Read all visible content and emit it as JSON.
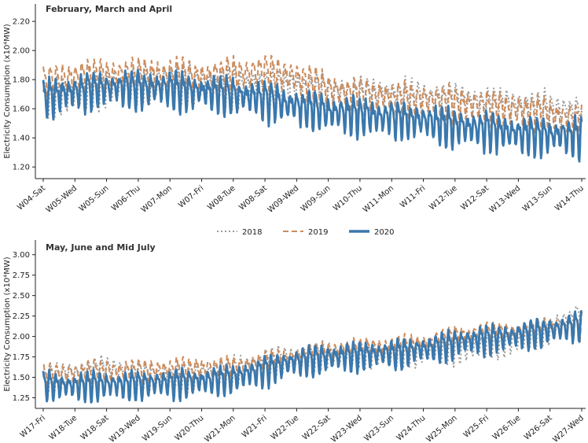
{
  "colors": {
    "2018": "#9a9a9a",
    "2019": "#cc8d5e",
    "2020": "#3a78ad"
  },
  "legend": [
    {
      "label": "2018",
      "style": "dotted",
      "color": "#9a9a9a"
    },
    {
      "label": "2019",
      "style": "dashed",
      "color": "#cc8d5e"
    },
    {
      "label": "2020",
      "style": "solid",
      "color": "#3a78ad"
    }
  ],
  "chart_data": [
    {
      "type": "line",
      "title": "February, March and April",
      "ylabel": "Electricity Consumption (x10⁴MW)",
      "ylim": [
        1.12,
        2.32
      ],
      "yticks": [
        1.2,
        1.4,
        1.6,
        1.8,
        2.0,
        2.2
      ],
      "ytick_labels": [
        "1.20",
        "1.40",
        "1.60",
        "1.80",
        "2.00",
        "2.20"
      ],
      "x_range": [
        0,
        85
      ],
      "xtick_positions": [
        0,
        5,
        10,
        15,
        20,
        25,
        30,
        35,
        40,
        45,
        50,
        55,
        60,
        65,
        70,
        75,
        80,
        85
      ],
      "xtick_labels": [
        "W04-Sat",
        "W05-Wed",
        "W05-Sun",
        "W06-Thu",
        "W07-Mon",
        "W07-Fri",
        "W08-Tue",
        "W08-Sat",
        "W09-Wed",
        "W09-Sun",
        "W10-Thu",
        "W11-Mon",
        "W11-Fri",
        "W12-Tue",
        "W12-Sat",
        "W13-Wed",
        "W13-Sun",
        "W14-Thu"
      ],
      "series": [
        {
          "name": "2018",
          "trend": [
            1.68,
            1.72,
            1.76,
            1.78,
            1.8,
            1.78,
            1.76,
            1.76,
            1.75,
            1.72,
            1.7,
            1.7,
            1.68,
            1.66,
            1.64,
            1.62,
            1.6,
            1.58
          ],
          "amplitude": 0.22
        },
        {
          "name": "2019",
          "trend": [
            1.78,
            1.82,
            1.84,
            1.84,
            1.84,
            1.82,
            1.84,
            1.86,
            1.82,
            1.74,
            1.7,
            1.68,
            1.66,
            1.64,
            1.62,
            1.6,
            1.56,
            1.52
          ],
          "amplitude": 0.21
        },
        {
          "name": "2020",
          "trend": [
            1.68,
            1.72,
            1.75,
            1.75,
            1.74,
            1.72,
            1.7,
            1.67,
            1.62,
            1.58,
            1.56,
            1.54,
            1.52,
            1.48,
            1.46,
            1.43,
            1.42,
            1.42
          ],
          "amplitude": 0.22
        }
      ]
    },
    {
      "type": "line",
      "title": "May, June and Mid July",
      "ylabel": "Electricity Consumption (x10⁴MW)",
      "ylim": [
        1.12,
        3.18
      ],
      "yticks": [
        1.25,
        1.5,
        1.75,
        2.0,
        2.25,
        2.5,
        2.75,
        3.0
      ],
      "ytick_labels": [
        "1.25",
        "1.50",
        "1.75",
        "2.00",
        "2.25",
        "2.50",
        "2.75",
        "3.00"
      ],
      "x_range": [
        0,
        85
      ],
      "xtick_positions": [
        0,
        5,
        10,
        15,
        20,
        25,
        30,
        35,
        40,
        45,
        50,
        55,
        60,
        65,
        70,
        75,
        80,
        85
      ],
      "xtick_labels": [
        "W17-Fri",
        "W18-Tue",
        "W18-Sat",
        "W19-Wed",
        "W19-Sun",
        "W20-Thu",
        "W21-Mon",
        "W21-Fri",
        "W22-Tue",
        "W22-Sat",
        "W23-Wed",
        "W23-Sun",
        "W24-Thu",
        "W25-Mon",
        "W25-Fri",
        "W26-Tue",
        "W26-Sat",
        "W27-Wed"
      ],
      "series": [
        {
          "name": "2018",
          "trend": [
            1.5,
            1.55,
            1.62,
            1.55,
            1.5,
            1.55,
            1.6,
            1.7,
            1.75,
            1.78,
            1.8,
            1.8,
            1.82,
            1.85,
            1.9,
            1.95,
            2.1,
            2.3
          ],
          "amplitude": 0.28
        },
        {
          "name": "2019",
          "trend": [
            1.52,
            1.55,
            1.58,
            1.58,
            1.6,
            1.62,
            1.62,
            1.68,
            1.75,
            1.8,
            1.85,
            1.88,
            1.9,
            2.0,
            2.05,
            2.05,
            2.1,
            2.15
          ],
          "amplitude": 0.26
        },
        {
          "name": "2020",
          "trend": [
            1.42,
            1.4,
            1.42,
            1.42,
            1.44,
            1.46,
            1.5,
            1.6,
            1.7,
            1.75,
            1.78,
            1.8,
            1.85,
            1.92,
            1.98,
            2.02,
            2.08,
            2.15
          ],
          "amplitude": 0.3
        }
      ]
    }
  ]
}
